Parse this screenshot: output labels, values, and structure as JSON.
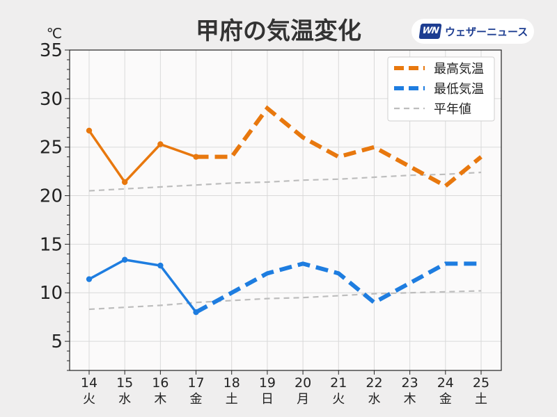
{
  "header": {
    "title": "甲府の気温変化",
    "unit": "℃"
  },
  "brand": {
    "mark": "WN",
    "name": "ウェザーニュース"
  },
  "colors": {
    "max": "#e8780e",
    "min": "#1e7de0",
    "normal": "#bdbdbd",
    "weekday_label": "#222222",
    "saturday_label": "#2a8be0",
    "sunday_label": "#e03b3b"
  },
  "chart_data": {
    "type": "line",
    "title": "甲府の気温変化",
    "ylabel": "℃",
    "ylim": [
      2,
      35
    ],
    "yticks": [
      5,
      10,
      15,
      20,
      25,
      30,
      35
    ],
    "grid": true,
    "legend_position": "top-right",
    "categories": [
      {
        "day": "14",
        "weekday": "火",
        "kind": "weekday"
      },
      {
        "day": "15",
        "weekday": "水",
        "kind": "weekday"
      },
      {
        "day": "16",
        "weekday": "木",
        "kind": "weekday"
      },
      {
        "day": "17",
        "weekday": "金",
        "kind": "weekday"
      },
      {
        "day": "18",
        "weekday": "土",
        "kind": "saturday"
      },
      {
        "day": "19",
        "weekday": "日",
        "kind": "sunday"
      },
      {
        "day": "20",
        "weekday": "月",
        "kind": "weekday"
      },
      {
        "day": "21",
        "weekday": "火",
        "kind": "weekday"
      },
      {
        "day": "22",
        "weekday": "水",
        "kind": "weekday"
      },
      {
        "day": "23",
        "weekday": "木",
        "kind": "weekday"
      },
      {
        "day": "24",
        "weekday": "金",
        "kind": "weekday"
      },
      {
        "day": "25",
        "weekday": "土",
        "kind": "saturday"
      }
    ],
    "observed_through_index": 3,
    "series": [
      {
        "key": "max",
        "name": "最高気温",
        "color": "#e8780e",
        "values": [
          26.7,
          21.4,
          25.3,
          24.0,
          24.0,
          29.0,
          26.0,
          24.0,
          25.0,
          23.0,
          21.0,
          24.0
        ]
      },
      {
        "key": "min",
        "name": "最低気温",
        "color": "#1e7de0",
        "values": [
          11.4,
          13.4,
          12.8,
          8.0,
          10.0,
          12.0,
          13.0,
          12.0,
          9.0,
          11.0,
          13.0,
          13.0
        ]
      }
    ],
    "normals": {
      "name": "平年値",
      "color": "#bdbdbd",
      "max": [
        20.5,
        20.7,
        20.9,
        21.1,
        21.3,
        21.4,
        21.6,
        21.7,
        21.9,
        22.1,
        22.2,
        22.4
      ],
      "min": [
        8.3,
        8.5,
        8.7,
        9.0,
        9.2,
        9.4,
        9.5,
        9.7,
        9.9,
        10.0,
        10.1,
        10.2
      ]
    }
  }
}
